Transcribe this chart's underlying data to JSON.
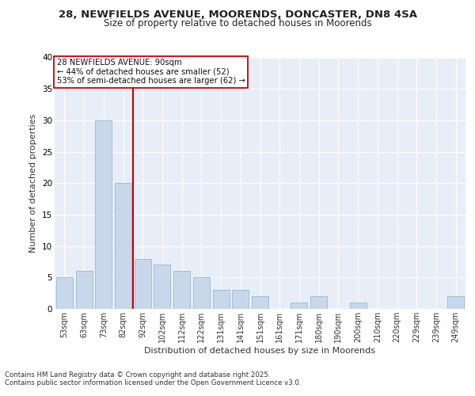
{
  "title_line1": "28, NEWFIELDS AVENUE, MOORENDS, DONCASTER, DN8 4SA",
  "title_line2": "Size of property relative to detached houses in Moorends",
  "xlabel": "Distribution of detached houses by size in Moorends",
  "ylabel": "Number of detached properties",
  "bar_labels": [
    "53sqm",
    "63sqm",
    "73sqm",
    "82sqm",
    "92sqm",
    "102sqm",
    "112sqm",
    "122sqm",
    "131sqm",
    "141sqm",
    "151sqm",
    "161sqm",
    "171sqm",
    "180sqm",
    "190sqm",
    "200sqm",
    "210sqm",
    "220sqm",
    "229sqm",
    "239sqm",
    "249sqm"
  ],
  "bar_values": [
    5,
    6,
    30,
    20,
    8,
    7,
    6,
    5,
    3,
    3,
    2,
    0,
    1,
    2,
    0,
    1,
    0,
    0,
    0,
    0,
    2
  ],
  "bar_color": "#c8d8ea",
  "bar_edge_color": "#9ab8d0",
  "annotation_line1": "28 NEWFIELDS AVENUE: 90sqm",
  "annotation_line2": "← 44% of detached houses are smaller (52)",
  "annotation_line3": "53% of semi-detached houses are larger (62) →",
  "ylim": [
    0,
    40
  ],
  "yticks": [
    0,
    5,
    10,
    15,
    20,
    25,
    30,
    35,
    40
  ],
  "fig_bg_color": "#ffffff",
  "plot_bg_color": "#e8eef8",
  "grid_color": "#ffffff",
  "footer_line1": "Contains HM Land Registry data © Crown copyright and database right 2025.",
  "footer_line2": "Contains public sector information licensed under the Open Government Licence v3.0.",
  "red_line_color": "#cc0000"
}
